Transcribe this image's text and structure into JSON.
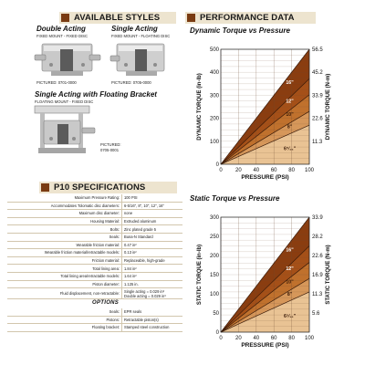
{
  "sections": {
    "available_styles": "AVAILABLE STYLES",
    "performance_data": "PERFORMANCE DATA",
    "p10_specifications": "P10 SPECIFICATIONS"
  },
  "styles": [
    {
      "title": "Double Acting",
      "subtitle": "FIXED MOUNT - FIXED DISC",
      "pictured": "PICTURED: 0701-0000"
    },
    {
      "title": "Single Acting",
      "subtitle": "FIXED MOUNT - FLOATING DISC",
      "pictured": "PICTURED: 0705-0000"
    },
    {
      "title": "Single Acting with Floating Bracket",
      "subtitle": "FLOATING MOUNT - FIXED DISC",
      "pictured_1": "PICTURED:",
      "pictured_2": "0705-0001"
    }
  ],
  "specs": [
    {
      "label": "Maximum Pressure Rating:",
      "value": "100 PSI"
    },
    {
      "label": "Accommodates Tolomatic disc diameters:",
      "value": "6-5/16\", 8\", 10\", 12\", 16\""
    },
    {
      "label": "Maximum disc diameter:",
      "value": "none"
    },
    {
      "label": "Housing Material:",
      "value": "Extruded aluminum"
    },
    {
      "label": "Bolts:",
      "value": "Zinc plated grade 5"
    },
    {
      "label": "Seals:",
      "value": "Buna-N Standard"
    },
    {
      "label": "Wearable friction material:",
      "value": "0.47 in²"
    },
    {
      "label": "Wearable friction material/retractable models:",
      "value": "0.13 in²"
    },
    {
      "label": "Friction material:",
      "value": "Replaceable, high-grade"
    },
    {
      "label": "Total lining area:",
      "value": "1.84 in²"
    },
    {
      "label": "Total lining area/retractable models:",
      "value": "1.64 in²"
    },
    {
      "label": "Piston diameter:",
      "value": "1.125 in."
    },
    {
      "label": "Fluid displacement, non-retractable:",
      "value": "Single acting = 0.029 in³",
      "value2": "Double acting = 0.029 in³"
    }
  ],
  "options": {
    "title": "OPTIONS",
    "rows": [
      {
        "label": "Seals:",
        "value": "EPR seals"
      },
      {
        "label": "Pistons:",
        "value": "Retractable piston(s)"
      },
      {
        "label": "Floating bracket:",
        "value": "Stamped steel construction"
      }
    ]
  },
  "colors": {
    "accent": "#7a3b12",
    "section_bg": "#ede4cf"
  },
  "chart_data": [
    {
      "type": "area",
      "title": "Dynamic Torque vs Pressure",
      "xlabel": "PRESSURE (PSI)",
      "ylabel": "DYNAMIC TORQUE (in-lb)",
      "ylabel_right": "DYNAMIC TORQUE (N-m)",
      "xlim": [
        0,
        100
      ],
      "ylim": [
        0,
        500
      ],
      "xticks": [
        0,
        20,
        40,
        60,
        80,
        100
      ],
      "yticks": [
        0,
        100,
        200,
        300,
        400,
        500
      ],
      "yticks_right_labels": [
        "11.3",
        "22.6",
        "33.9",
        "45.2",
        "56.5"
      ],
      "yticks_right_values": [
        100,
        200,
        300,
        400,
        500
      ],
      "grid": true,
      "series": [
        {
          "name": "16\"",
          "x": [
            0,
            100
          ],
          "values": [
            0,
            500
          ]
        },
        {
          "name": "12\"",
          "x": [
            0,
            100
          ],
          "values": [
            0,
            372
          ]
        },
        {
          "name": "10\"",
          "x": [
            0,
            100
          ],
          "values": [
            0,
            302
          ]
        },
        {
          "name": "8\"",
          "x": [
            0,
            100
          ],
          "values": [
            0,
            230
          ]
        },
        {
          "name": "6⁵⁄₁₆\"",
          "x": [
            0,
            100
          ],
          "values": [
            0,
            170
          ]
        }
      ]
    },
    {
      "type": "area",
      "title": "Static Torque vs Pressure",
      "xlabel": "PRESSURE (PSI)",
      "ylabel": "STATIC TORQUE (in-lb)",
      "ylabel_right": "STATIC TORQUE (N-m)",
      "xlim": [
        0,
        100
      ],
      "ylim": [
        0,
        300
      ],
      "xticks": [
        0,
        20,
        40,
        60,
        80,
        100
      ],
      "yticks": [
        0,
        50,
        100,
        150,
        200,
        250,
        300
      ],
      "yticks_right_labels": [
        "5.6",
        "11.3",
        "16.9",
        "22.6",
        "28.2",
        "33.9"
      ],
      "yticks_right_values": [
        50,
        100,
        150,
        200,
        250,
        300
      ],
      "grid": true,
      "series": [
        {
          "name": "16\"",
          "x": [
            0,
            100
          ],
          "values": [
            0,
            300
          ]
        },
        {
          "name": "12\"",
          "x": [
            0,
            100
          ],
          "values": [
            0,
            225
          ]
        },
        {
          "name": "10\"",
          "x": [
            0,
            100
          ],
          "values": [
            0,
            182
          ]
        },
        {
          "name": "8\"",
          "x": [
            0,
            100
          ],
          "values": [
            0,
            140
          ]
        },
        {
          "name": "6⁵⁄₁₆\"",
          "x": [
            0,
            100
          ],
          "values": [
            0,
            105
          ]
        }
      ]
    }
  ]
}
